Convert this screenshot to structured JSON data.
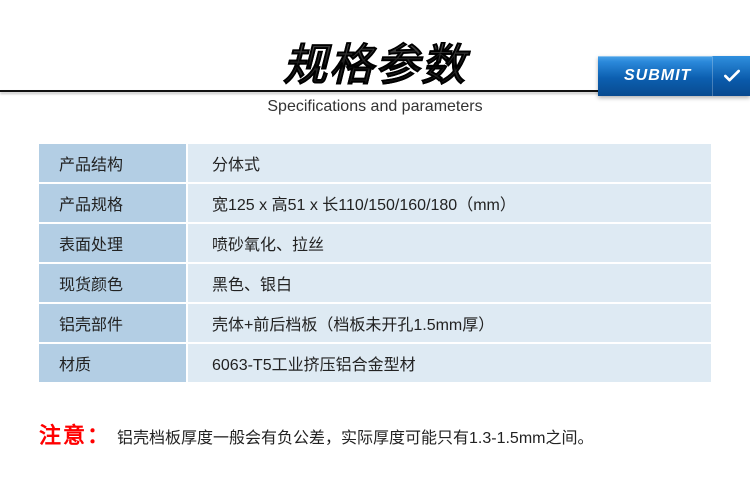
{
  "header": {
    "title_cn": "规格参数",
    "subtitle_en": "Specifications and parameters",
    "submit_label": "SUBMIT"
  },
  "colors": {
    "row_label_bg": "#b3cee4",
    "row_value_bg": "#deeaf3",
    "border": "#ffffff",
    "text": "#222222",
    "note_red": "#ff0000",
    "btn_grad_top": "#4aa3e8",
    "btn_grad_bottom": "#084b90"
  },
  "table": {
    "rows": [
      {
        "label": "产品结构",
        "value": "分体式"
      },
      {
        "label": "产品规格",
        "value": "宽125 x 高51 x 长110/150/160/180（mm）"
      },
      {
        "label": "表面处理",
        "value": "喷砂氧化、拉丝"
      },
      {
        "label": "现货颜色",
        "value": "黑色、银白"
      },
      {
        "label": "铝壳部件",
        "value": "壳体+前后档板（档板未开孔1.5mm厚）"
      },
      {
        "label": "材质",
        "value": "6063-T5工业挤压铝合金型材"
      }
    ]
  },
  "note": {
    "label": "注意：",
    "text": "铝壳档板厚度一般会有负公差，实际厚度可能只有1.3-1.5mm之间。"
  }
}
